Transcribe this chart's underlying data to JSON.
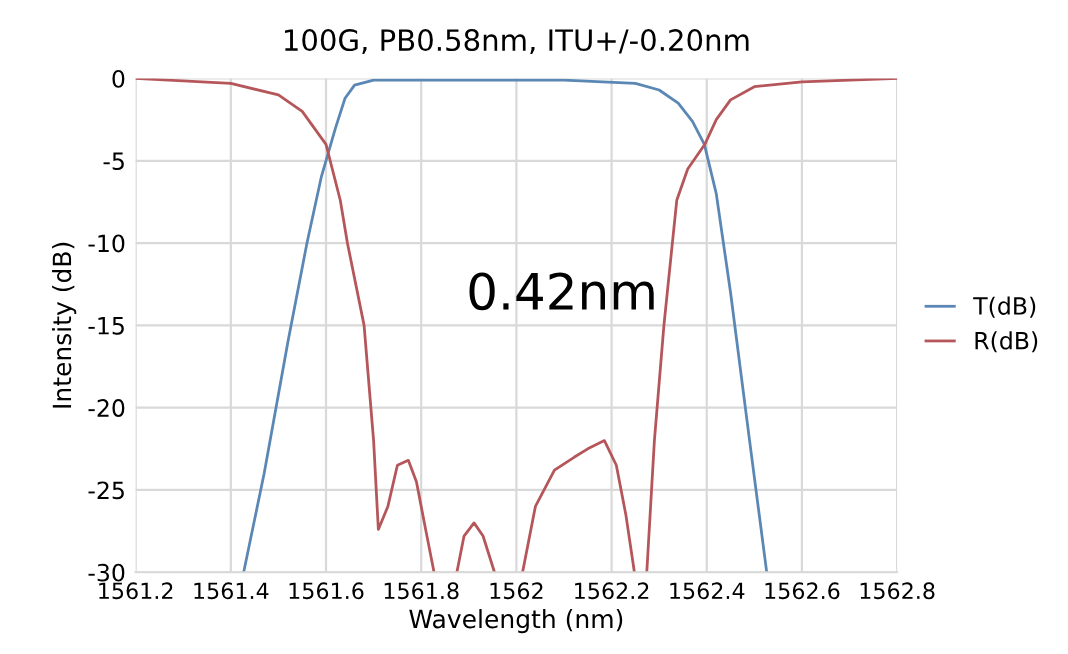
{
  "chart_data": {
    "type": "line",
    "title": "100G, PB0.58nm, ITU+/-0.20nm",
    "xlabel": "Wavelength (nm)",
    "ylabel": "Intensity (dB)",
    "annotations": [
      "0.42nm"
    ],
    "series": [
      {
        "name": "T(dB)",
        "color": "#5b87b5",
        "x": [
          1561.427,
          1561.47,
          1561.52,
          1561.56,
          1561.59,
          1561.62,
          1561.64,
          1561.66,
          1561.7,
          1561.9,
          1562.1,
          1562.25,
          1562.3,
          1562.34,
          1562.37,
          1562.395,
          1562.42,
          1562.45,
          1562.49,
          1562.526
        ],
        "values": [
          -30,
          -24,
          -16,
          -10,
          -6,
          -3,
          -1.2,
          -0.4,
          -0.1,
          -0.1,
          -0.1,
          -0.3,
          -0.7,
          -1.5,
          -2.6,
          -4,
          -7,
          -13,
          -22,
          -30
        ]
      },
      {
        "name": "R(dB)",
        "color": "#b5565a",
        "x": [
          1561.2,
          1561.4,
          1561.5,
          1561.55,
          1561.6,
          1561.63,
          1561.645,
          1561.68,
          1561.7,
          1561.71,
          1561.73,
          1561.75,
          1561.773,
          1561.79,
          1561.81,
          1561.827,
          1561.85,
          1561.875,
          1561.89,
          1561.911,
          1561.93,
          1561.954,
          1561.98,
          1562.013,
          1562.04,
          1562.08,
          1562.122,
          1562.15,
          1562.185,
          1562.21,
          1562.23,
          1562.248,
          1562.26,
          1562.274,
          1562.29,
          1562.31,
          1562.337,
          1562.36,
          1562.396,
          1562.42,
          1562.45,
          1562.5,
          1562.6,
          1562.8
        ],
        "values": [
          0,
          -0.3,
          -1.0,
          -2.0,
          -4.0,
          -7.4,
          -10,
          -15,
          -22,
          -27.4,
          -26,
          -23.5,
          -23.2,
          -24.5,
          -27.5,
          -30,
          null,
          -30,
          -27.8,
          -27.0,
          -27.8,
          -30,
          null,
          -30,
          -26,
          -23.8,
          -23.0,
          -22.5,
          -22.0,
          -23.5,
          -26.5,
          -30,
          null,
          -30,
          -22,
          -15,
          -7.4,
          -5.5,
          -4,
          -2.5,
          -1.3,
          -0.5,
          -0.2,
          0
        ]
      }
    ],
    "xlim": [
      1561.2,
      1562.8
    ],
    "xticks": [
      1561.2,
      1561.4,
      1561.6,
      1561.8,
      1562,
      1562.2,
      1562.4,
      1562.6,
      1562.8
    ],
    "ylim": [
      -30,
      0
    ],
    "yticks": [
      0,
      -5,
      -10,
      -15,
      -20,
      -25,
      -30
    ],
    "grid": true,
    "legend": "right",
    "marker": "none",
    "line_style": "solid"
  }
}
